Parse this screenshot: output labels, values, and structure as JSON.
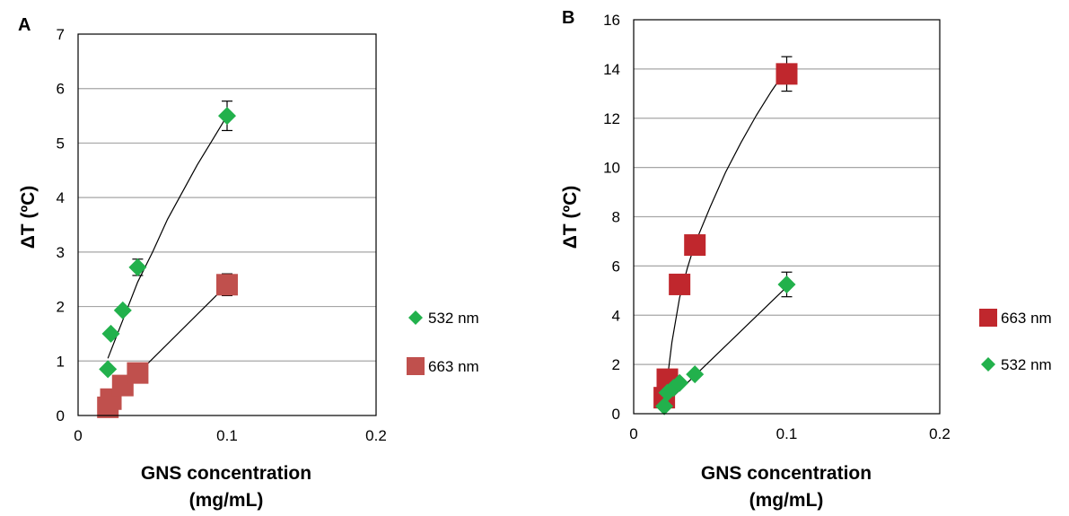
{
  "colors": {
    "green": "#22b14c",
    "red_a": "#c0504d",
    "red_b": "#c0272d",
    "grid": "#a6a6a6",
    "axis": "#000000"
  },
  "chart_data": [
    {
      "panel_label": "A",
      "type": "scatter",
      "xlabel": [
        "GNS concentration",
        "(mg/mL)"
      ],
      "ylabel": "ΔT (ºC)",
      "xlim": [
        0,
        0.2
      ],
      "ylim": [
        0,
        7
      ],
      "x_ticks": [
        "0",
        "0.1",
        "0.2"
      ],
      "y_ticks": [
        "0",
        "1",
        "2",
        "3",
        "4",
        "5",
        "6",
        "7"
      ],
      "grid": true,
      "legend_position": "right",
      "series": [
        {
          "name": "532 nm",
          "marker": "diamond",
          "color": "#22b14c",
          "x": [
            0.02,
            0.022,
            0.03,
            0.04,
            0.1
          ],
          "y": [
            0.85,
            1.5,
            1.93,
            2.72,
            5.5
          ],
          "error": [
            0,
            0,
            0,
            0.15,
            0.27
          ],
          "trendline": "power",
          "trend_points": [
            [
              0.02,
              1.05
            ],
            [
              0.025,
              1.4
            ],
            [
              0.03,
              1.75
            ],
            [
              0.04,
              2.45
            ],
            [
              0.05,
              3.0
            ],
            [
              0.06,
              3.6
            ],
            [
              0.07,
              4.1
            ],
            [
              0.08,
              4.6
            ],
            [
              0.09,
              5.05
            ],
            [
              0.1,
              5.5
            ]
          ]
        },
        {
          "name": "663 nm",
          "marker": "square",
          "color": "#c0504d",
          "x": [
            0.02,
            0.022,
            0.03,
            0.04,
            0.1
          ],
          "y": [
            0.15,
            0.3,
            0.55,
            0.78,
            2.4
          ],
          "error": [
            0,
            0,
            0,
            0,
            0.2
          ],
          "trendline": "linear",
          "trend_points": [
            [
              0.022,
              0.28
            ],
            [
              0.1,
              2.4
            ]
          ]
        }
      ]
    },
    {
      "panel_label": "B",
      "type": "scatter",
      "xlabel": [
        "GNS concentration",
        "(mg/mL)"
      ],
      "ylabel": "ΔT (ºC)",
      "xlim": [
        0,
        0.2
      ],
      "ylim": [
        0,
        16
      ],
      "x_ticks": [
        "0",
        "0.1",
        "0.2"
      ],
      "y_ticks": [
        "0",
        "2",
        "4",
        "6",
        "8",
        "10",
        "12",
        "14",
        "16"
      ],
      "grid": true,
      "legend_position": "right",
      "series": [
        {
          "name": "663 nm",
          "marker": "square",
          "color": "#c0272d",
          "x": [
            0.02,
            0.022,
            0.03,
            0.04,
            0.1
          ],
          "y": [
            0.65,
            1.4,
            5.25,
            6.85,
            13.8
          ],
          "error": [
            0,
            0,
            0,
            0,
            0.7
          ],
          "trendline": "power",
          "trend_points": [
            [
              0.022,
              1.4
            ],
            [
              0.025,
              2.9
            ],
            [
              0.03,
              4.7
            ],
            [
              0.035,
              5.9
            ],
            [
              0.04,
              6.9
            ],
            [
              0.05,
              8.4
            ],
            [
              0.06,
              9.8
            ],
            [
              0.07,
              11.0
            ],
            [
              0.08,
              12.1
            ],
            [
              0.09,
              13.1
            ],
            [
              0.1,
              14.0
            ]
          ]
        },
        {
          "name": "532 nm",
          "marker": "diamond",
          "color": "#22b14c",
          "x": [
            0.02,
            0.022,
            0.026,
            0.03,
            0.04,
            0.1
          ],
          "y": [
            0.3,
            0.85,
            1.05,
            1.25,
            1.6,
            5.25
          ],
          "error": [
            0,
            0,
            0,
            0,
            0,
            0.5
          ],
          "trendline": "linear",
          "trend_points": [
            [
              0.02,
              0.35
            ],
            [
              0.1,
              5.15
            ]
          ]
        }
      ]
    }
  ]
}
